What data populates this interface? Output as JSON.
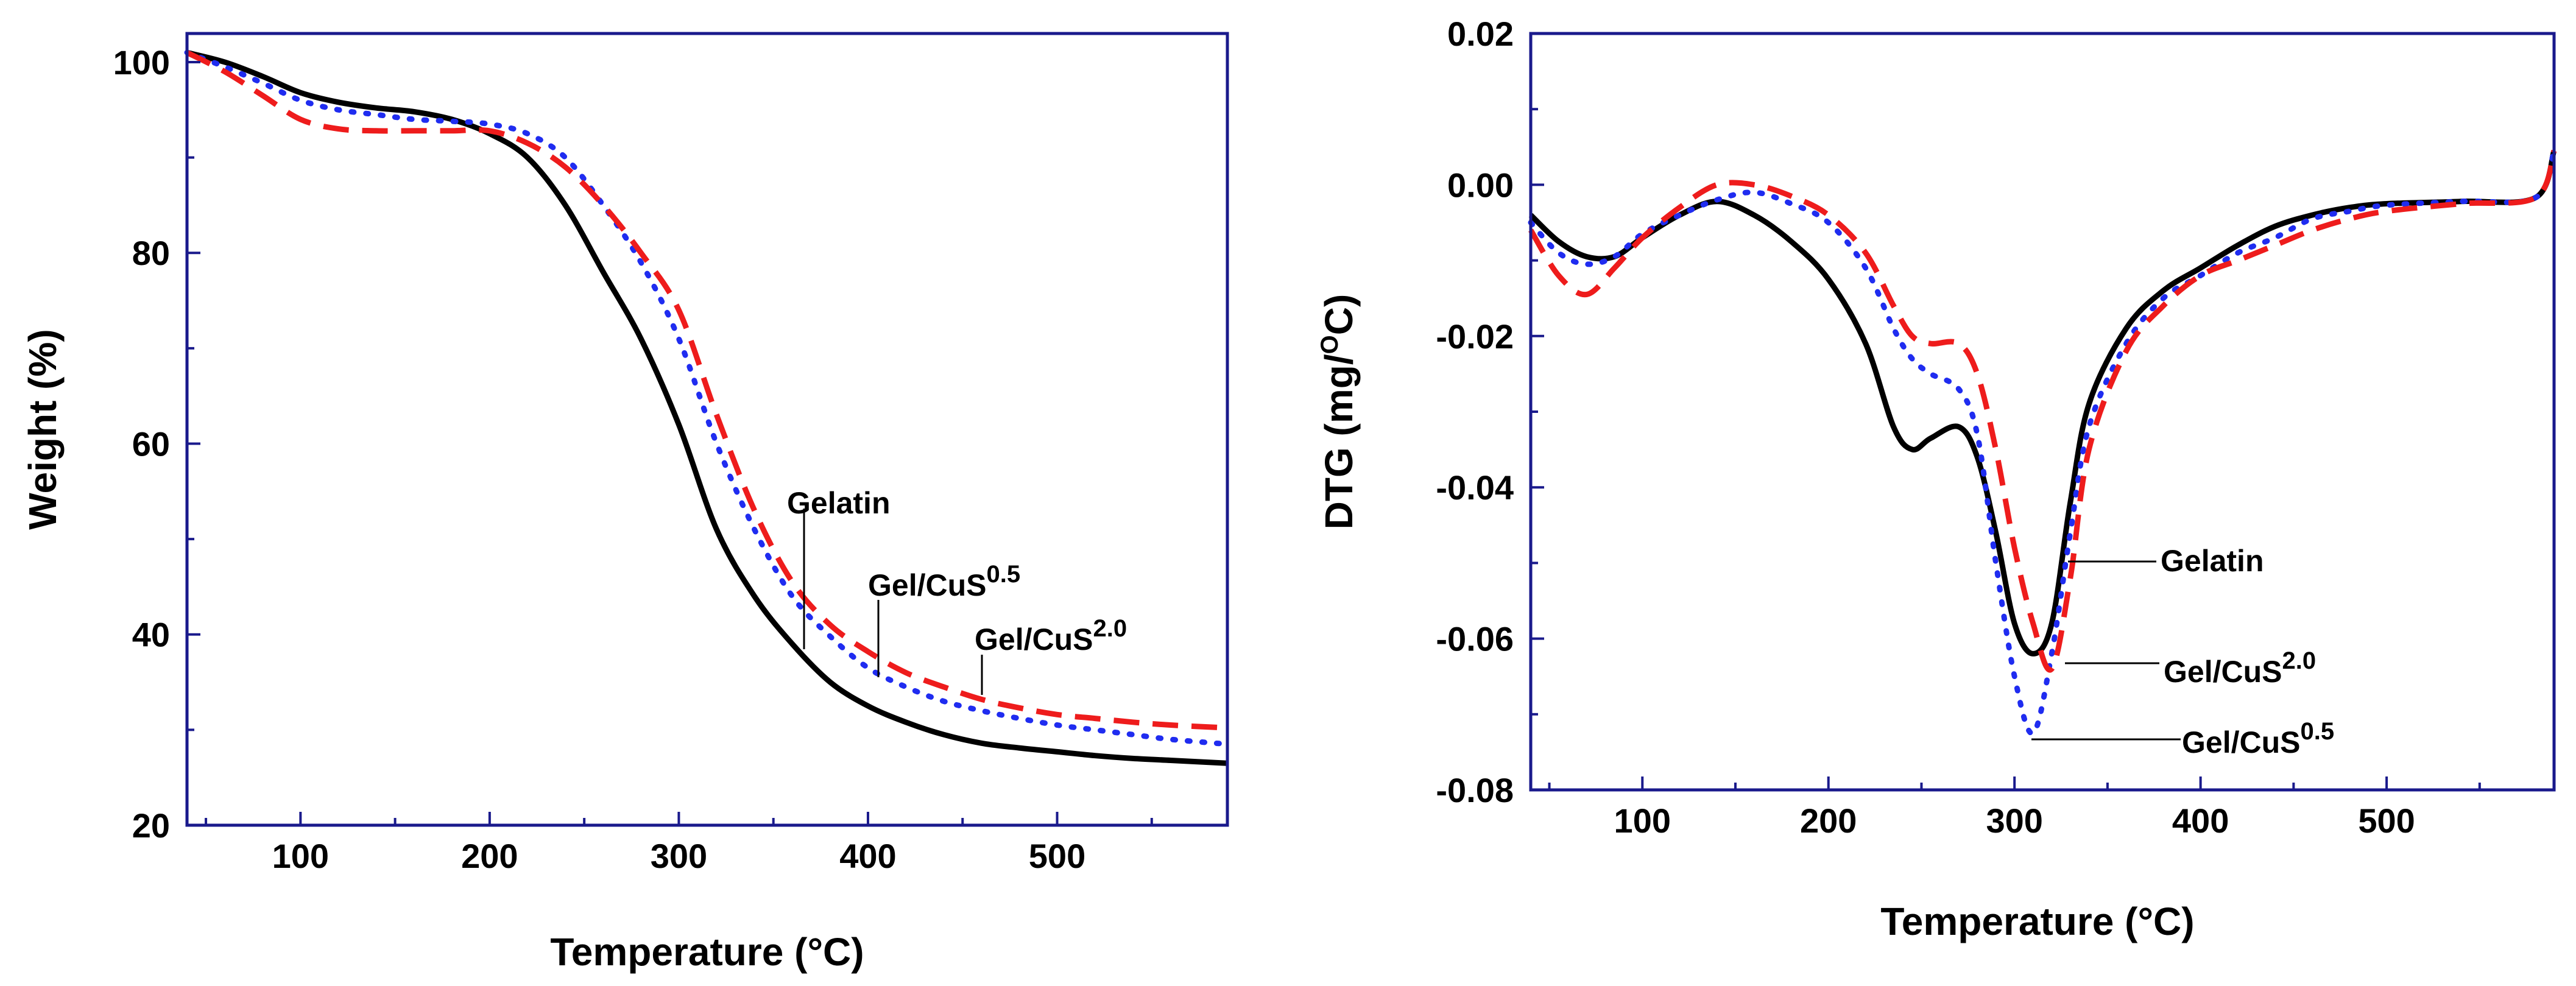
{
  "chart_data": [
    {
      "type": "line",
      "title": "",
      "xlabel": "Temperature",
      "xunit": "(°C)",
      "ylabel": "Weight (%)",
      "xlim": [
        40,
        590
      ],
      "ylim": [
        20,
        103
      ],
      "xticks": [
        100,
        200,
        300,
        400,
        500
      ],
      "yticks": [
        20,
        40,
        60,
        80,
        100
      ],
      "xtick_labels": [
        "100",
        "200",
        "300",
        "400",
        "500"
      ],
      "ytick_labels": [
        "20",
        "40",
        "60",
        "80",
        "100"
      ],
      "series": [
        {
          "name": "Gelatin",
          "style": "solid",
          "color": "#000000",
          "x": [
            40,
            60,
            80,
            100,
            120,
            140,
            160,
            180,
            200,
            220,
            240,
            260,
            280,
            300,
            320,
            340,
            360,
            380,
            400,
            420,
            440,
            460,
            480,
            500,
            520,
            540,
            560,
            590
          ],
          "y": [
            101,
            100,
            98.5,
            96.8,
            95.8,
            95.2,
            94.8,
            94,
            92.5,
            90,
            85,
            78,
            71,
            62,
            51,
            44,
            39,
            35,
            32.5,
            30.8,
            29.5,
            28.6,
            28.1,
            27.7,
            27.3,
            27,
            26.8,
            26.5
          ]
        },
        {
          "name": "Gel/CuS",
          "sup": "0.5",
          "style": "dotted",
          "color": "#1f2cf0",
          "x": [
            40,
            60,
            80,
            100,
            120,
            140,
            160,
            180,
            200,
            220,
            240,
            260,
            280,
            300,
            320,
            340,
            360,
            380,
            400,
            420,
            440,
            460,
            480,
            500,
            520,
            540,
            560,
            590
          ],
          "y": [
            101,
            99.5,
            97.8,
            96,
            95,
            94.5,
            94,
            93.8,
            93.5,
            92.5,
            90,
            85,
            79,
            71,
            60,
            51,
            44,
            39.8,
            36.5,
            34.5,
            33,
            32,
            31.2,
            30.5,
            30,
            29.5,
            29,
            28.5
          ]
        },
        {
          "name": "Gel/CuS",
          "sup": "2.0",
          "style": "dashed",
          "color": "#ee1c1c",
          "x": [
            40,
            60,
            80,
            100,
            120,
            140,
            160,
            180,
            200,
            220,
            240,
            260,
            280,
            300,
            320,
            340,
            360,
            380,
            400,
            420,
            440,
            460,
            480,
            500,
            520,
            540,
            560,
            590
          ],
          "y": [
            101,
            99,
            96.5,
            94,
            93,
            92.8,
            92.8,
            92.8,
            92.8,
            91.5,
            89,
            85,
            80,
            74,
            63,
            53,
            45.5,
            41,
            38.2,
            36,
            34.5,
            33.2,
            32.3,
            31.6,
            31.2,
            30.8,
            30.5,
            30.2
          ]
        }
      ],
      "annotations": [
        {
          "text": "Gelatin",
          "sup": ""
        },
        {
          "text": "Gel/CuS",
          "sup": "0.5"
        },
        {
          "text": "Gel/CuS",
          "sup": "2.0"
        }
      ]
    },
    {
      "type": "line",
      "title": "",
      "xlabel": "Temperature",
      "xunit": "(°C)",
      "ylabel": "DTG (mg/",
      "ylabel_sup": "O",
      "ylabel_tail": "C)",
      "xlim": [
        40,
        590
      ],
      "ylim": [
        -0.08,
        0.02
      ],
      "xticks": [
        100,
        200,
        300,
        400,
        500
      ],
      "yticks": [
        -0.08,
        -0.06,
        -0.04,
        -0.02,
        0.0,
        0.02
      ],
      "xtick_labels": [
        "100",
        "200",
        "300",
        "400",
        "500"
      ],
      "ytick_labels": [
        "-0.08",
        "-0.06",
        "-0.04",
        "-0.02",
        "0.00",
        "0.02"
      ],
      "series": [
        {
          "name": "Gelatin",
          "style": "solid",
          "color": "#000000",
          "x": [
            40,
            55,
            70,
            85,
            100,
            120,
            140,
            160,
            180,
            200,
            220,
            235,
            245,
            255,
            270,
            280,
            290,
            300,
            310,
            320,
            330,
            340,
            360,
            380,
            400,
            420,
            440,
            460,
            480,
            500,
            540,
            580,
            590
          ],
          "y": [
            -0.004,
            -0.0075,
            -0.0095,
            -0.0095,
            -0.007,
            -0.004,
            -0.0022,
            -0.004,
            -0.0075,
            -0.0125,
            -0.021,
            -0.032,
            -0.035,
            -0.0335,
            -0.032,
            -0.036,
            -0.046,
            -0.058,
            -0.062,
            -0.058,
            -0.042,
            -0.029,
            -0.019,
            -0.014,
            -0.011,
            -0.008,
            -0.0055,
            -0.004,
            -0.003,
            -0.0025,
            -0.0022,
            -0.0017,
            0.0045
          ]
        },
        {
          "name": "Gel/CuS",
          "sup": "0.5",
          "style": "dotted",
          "color": "#1f2cf0",
          "x": [
            40,
            55,
            70,
            85,
            100,
            120,
            140,
            160,
            180,
            200,
            220,
            235,
            245,
            255,
            270,
            280,
            290,
            300,
            310,
            320,
            330,
            340,
            360,
            380,
            400,
            420,
            440,
            460,
            480,
            500,
            540,
            580,
            590
          ],
          "y": [
            -0.005,
            -0.009,
            -0.0105,
            -0.0095,
            -0.0065,
            -0.004,
            -0.002,
            -0.001,
            -0.0025,
            -0.005,
            -0.011,
            -0.019,
            -0.023,
            -0.025,
            -0.027,
            -0.033,
            -0.05,
            -0.065,
            -0.0725,
            -0.062,
            -0.046,
            -0.032,
            -0.021,
            -0.015,
            -0.012,
            -0.009,
            -0.007,
            -0.0045,
            -0.0035,
            -0.0027,
            -0.0022,
            -0.0017,
            0.0045
          ]
        },
        {
          "name": "Gel/CuS",
          "sup": "2.0",
          "style": "dashed",
          "color": "#ee1c1c",
          "x": [
            40,
            55,
            70,
            85,
            100,
            120,
            140,
            160,
            180,
            200,
            220,
            235,
            245,
            255,
            270,
            280,
            290,
            300,
            310,
            320,
            330,
            340,
            360,
            380,
            400,
            420,
            440,
            460,
            480,
            500,
            540,
            580,
            590
          ],
          "y": [
            -0.006,
            -0.012,
            -0.0145,
            -0.011,
            -0.007,
            -0.003,
            0.0,
            0.0,
            -0.0015,
            -0.004,
            -0.009,
            -0.016,
            -0.02,
            -0.021,
            -0.021,
            -0.025,
            -0.035,
            -0.048,
            -0.058,
            -0.064,
            -0.052,
            -0.035,
            -0.022,
            -0.016,
            -0.012,
            -0.01,
            -0.008,
            -0.006,
            -0.0045,
            -0.0035,
            -0.0025,
            -0.0017,
            0.0045
          ]
        }
      ],
      "annotations": [
        {
          "text": "Gelatin",
          "sup": ""
        },
        {
          "text": "Gel/CuS",
          "sup": "2.0"
        },
        {
          "text": "Gel/CuS",
          "sup": "0.5"
        }
      ]
    }
  ]
}
